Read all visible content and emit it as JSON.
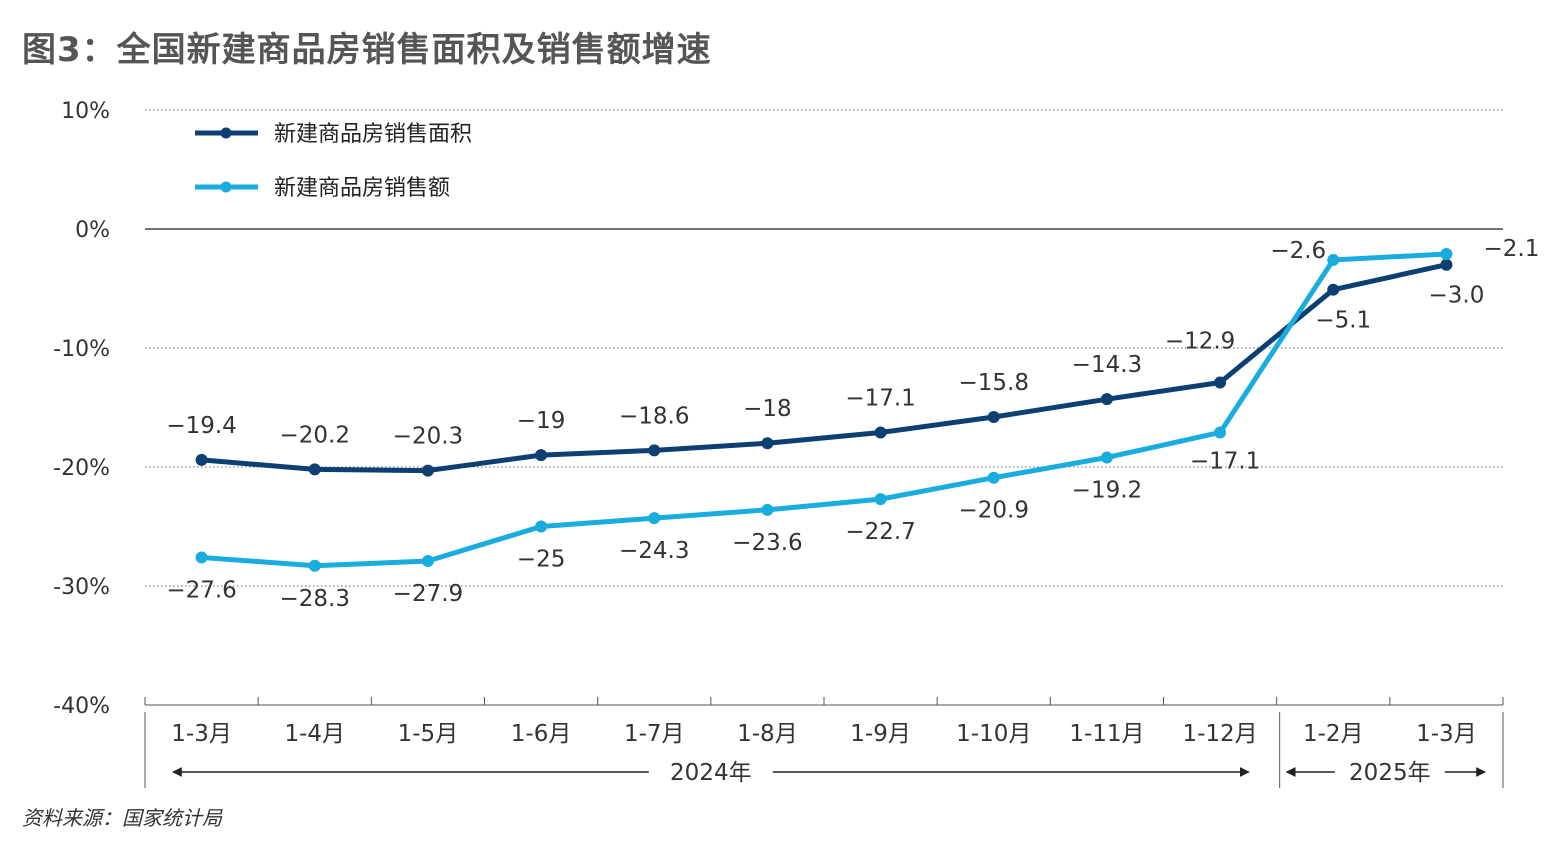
{
  "title": "图3：全国新建商品房销售面积及销售额增速",
  "source": "资料来源：国家统计局",
  "colors": {
    "series_area": "#0d3f73",
    "series_amount": "#19acdf",
    "grid": "#666666"
  },
  "chart_data": {
    "type": "line",
    "categories": [
      "1-3月",
      "1-4月",
      "1-5月",
      "1-6月",
      "1-7月",
      "1-8月",
      "1-9月",
      "1-10月",
      "1-11月",
      "1-12月",
      "1-2月",
      "1-3月"
    ],
    "y_ticks": [
      "10%",
      "0%",
      "-10%",
      "-20%",
      "-30%",
      "-40%"
    ],
    "y_tick_values": [
      10,
      0,
      -10,
      -20,
      -30,
      -40
    ],
    "ylim": [
      -40,
      10
    ],
    "grid": "horizontal dotted",
    "legend_position": "top-left",
    "year_groups": [
      {
        "label": "2024年",
        "first": 0,
        "last": 9
      },
      {
        "label": "2025年",
        "first": 10,
        "last": 11
      }
    ],
    "series": [
      {
        "name": "新建商品房销售面积",
        "color": "#0d3f73",
        "values": [
          -19.4,
          -20.2,
          -20.3,
          -19,
          -18.6,
          -18,
          -17.1,
          -15.8,
          -14.3,
          -12.9,
          -5.1,
          -3.0
        ],
        "labels": [
          "−19.4",
          "−20.2",
          "−20.3",
          "−19",
          "−18.6",
          "−18",
          "−17.1",
          "−15.8",
          "−14.3",
          "−12.9",
          "−5.1",
          "−3.0"
        ]
      },
      {
        "name": "新建商品房销售额",
        "color": "#19acdf",
        "values": [
          -27.6,
          -28.3,
          -27.9,
          -25,
          -24.3,
          -23.6,
          -22.7,
          -20.9,
          -19.2,
          -17.1,
          -2.6,
          -2.1
        ],
        "labels": [
          "−27.6",
          "−28.3",
          "−27.9",
          "−25",
          "−24.3",
          "−23.6",
          "−22.7",
          "−20.9",
          "−19.2",
          "−17.1",
          "−2.6",
          "−2.1"
        ]
      }
    ]
  }
}
